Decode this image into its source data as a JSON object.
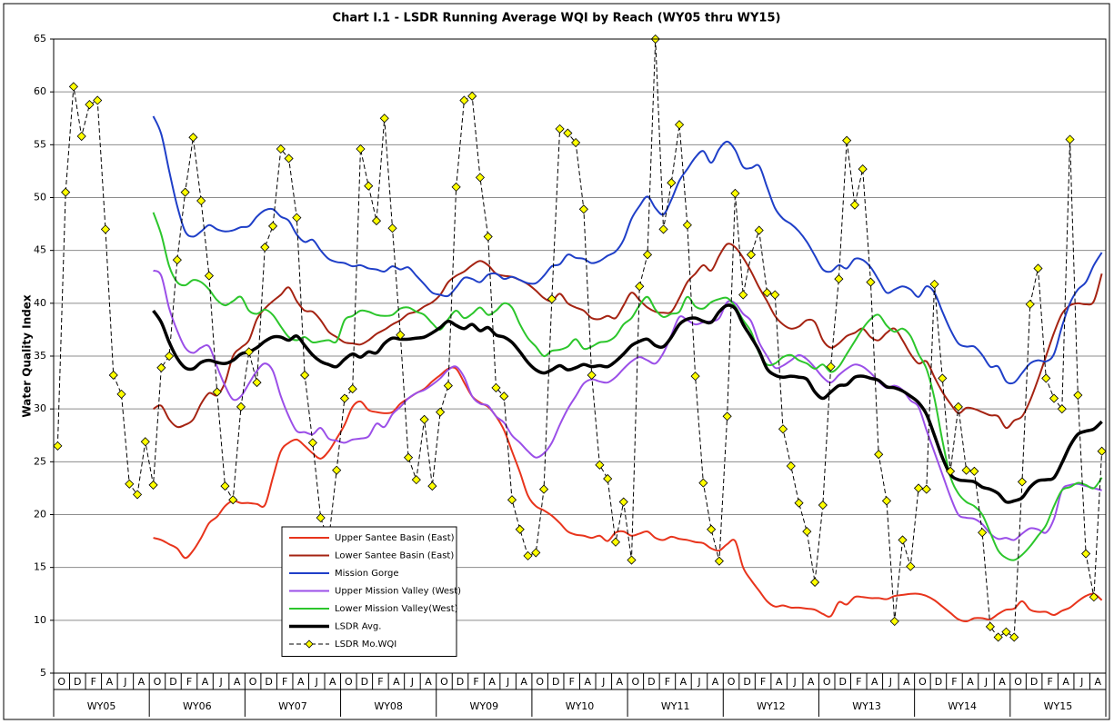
{
  "chart_data": {
    "type": "line",
    "title": "Chart I.1 - LSDR Running Average WQI by Reach (WY05 thru WY15)",
    "y_label": "Water Quality Index",
    "ylim": [
      5,
      65
    ],
    "yticks": [
      5,
      10,
      15,
      20,
      25,
      30,
      35,
      40,
      45,
      50,
      55,
      60,
      65
    ],
    "grid": true,
    "legend": "bottom-center",
    "categories": [
      "O",
      null,
      "D",
      null,
      "F",
      null,
      "A",
      null,
      "J",
      null,
      "A",
      null,
      "O",
      null,
      "D",
      null,
      "F",
      null,
      "A",
      null,
      "J",
      null,
      "A",
      null,
      "O",
      null,
      "D",
      null,
      "F",
      null,
      "A",
      null,
      "J",
      null,
      "A",
      null,
      "O",
      null,
      "D",
      null,
      "F",
      null,
      "A",
      null,
      "J",
      null,
      "A",
      null,
      "O",
      null,
      "D",
      null,
      "F",
      null,
      "A",
      null,
      "J",
      null,
      "A",
      null,
      "O",
      null,
      "D",
      null,
      "F",
      null,
      "A",
      null,
      "J",
      null,
      "A",
      null,
      "O",
      null,
      "D",
      null,
      "F",
      null,
      "A",
      null,
      "J",
      null,
      "A",
      null,
      "O",
      null,
      "D",
      null,
      "F",
      null,
      "A",
      null,
      "J",
      null,
      "A",
      null,
      "O",
      null,
      "D",
      null,
      "F",
      null,
      "A",
      null,
      "J",
      null,
      "A",
      null,
      "O",
      null,
      "D",
      null,
      "F",
      null,
      "A",
      null,
      "J",
      null,
      "A",
      null,
      "O",
      null,
      "D",
      null,
      "F",
      null,
      "A",
      null,
      "J",
      null,
      "A",
      null
    ],
    "x_groups": [
      "WY05",
      "WY06",
      "WY07",
      "WY08",
      "WY09",
      "WY10",
      "WY11",
      "WY12",
      "WY13",
      "WY14",
      "WY15"
    ],
    "series": [
      {
        "name": "Upper Santee Basin (East)",
        "color": "#e8341c",
        "width": 2,
        "values": [
          null,
          null,
          null,
          null,
          null,
          null,
          null,
          null,
          null,
          null,
          null,
          null,
          17.8,
          17.6,
          17.2,
          16.8,
          15.9,
          16.6,
          17.8,
          19.2,
          19.8,
          20.8,
          21.3,
          21.1,
          21.1,
          21.0,
          20.9,
          23.5,
          26.0,
          26.8,
          27.1,
          26.5,
          25.8,
          25.3,
          26.0,
          27.2,
          28.5,
          30.2,
          30.7,
          29.9,
          29.7,
          29.6,
          29.7,
          30.5,
          31.0,
          31.5,
          31.9,
          32.6,
          33.2,
          33.8,
          33.8,
          32.5,
          31.2,
          30.6,
          30.2,
          29.3,
          28.0,
          26.0,
          24.0,
          21.8,
          20.8,
          20.4,
          19.9,
          19.2,
          18.4,
          18.1,
          18.0,
          17.8,
          18.0,
          17.5,
          18.3,
          18.4,
          18.0,
          18.2,
          18.4,
          17.8,
          17.6,
          17.9,
          17.7,
          17.6,
          17.4,
          17.3,
          16.8,
          16.6,
          17.2,
          17.5,
          15.0,
          13.8,
          12.8,
          11.8,
          11.3,
          11.4,
          11.2,
          11.2,
          11.1,
          11.0,
          10.6,
          10.4,
          11.7,
          11.5,
          12.2,
          12.2,
          12.1,
          12.1,
          12.0,
          12.3,
          12.4,
          12.5,
          12.5,
          12.3,
          11.9,
          11.3,
          10.7,
          10.1,
          9.9,
          10.2,
          10.2,
          10.1,
          10.6,
          11.0,
          11.1,
          11.8,
          11.0,
          10.8,
          10.8,
          10.5,
          10.9,
          11.2,
          11.8,
          12.3,
          12.5,
          11.9
        ]
      },
      {
        "name": "Lower Santee Basin (East)",
        "color": "#a52312",
        "width": 2,
        "values": [
          null,
          null,
          null,
          null,
          null,
          null,
          null,
          null,
          null,
          null,
          null,
          null,
          30.0,
          30.3,
          29.0,
          28.3,
          28.5,
          29.0,
          30.5,
          31.5,
          31.3,
          32.5,
          35.0,
          35.8,
          36.5,
          38.5,
          39.5,
          40.2,
          40.8,
          41.5,
          40.2,
          39.3,
          39.2,
          38.4,
          37.3,
          36.8,
          36.3,
          36.2,
          36.1,
          36.5,
          37.1,
          37.5,
          38.0,
          38.4,
          39.0,
          39.2,
          39.7,
          40.1,
          40.8,
          42.0,
          42.6,
          43.0,
          43.6,
          44.0,
          43.6,
          42.8,
          42.6,
          42.5,
          42.2,
          41.8,
          41.2,
          40.5,
          40.2,
          40.9,
          40.0,
          39.6,
          39.3,
          38.6,
          38.5,
          38.8,
          38.6,
          39.8,
          41.0,
          40.3,
          39.6,
          39.2,
          39.1,
          39.2,
          40.5,
          42.0,
          42.8,
          43.6,
          43.1,
          44.5,
          45.6,
          45.3,
          44.3,
          43.0,
          41.5,
          40.2,
          38.8,
          38.0,
          37.6,
          37.8,
          38.4,
          38.2,
          36.5,
          35.8,
          36.2,
          36.9,
          37.2,
          37.6,
          36.8,
          36.5,
          37.2,
          37.6,
          36.5,
          35.2,
          34.3,
          34.5,
          33.0,
          31.6,
          30.5,
          29.6,
          30.1,
          30.0,
          29.7,
          29.4,
          29.3,
          28.2,
          28.9,
          29.3,
          30.8,
          32.8,
          35.0,
          37.2,
          39.0,
          39.8,
          40.0,
          39.9,
          40.2,
          42.8
        ]
      },
      {
        "name": "Mission Gorge",
        "color": "#1f3fc8",
        "width": 2,
        "values": [
          null,
          null,
          null,
          null,
          null,
          null,
          null,
          null,
          null,
          null,
          null,
          null,
          57.7,
          56.0,
          52.5,
          49.2,
          46.8,
          46.3,
          46.8,
          47.4,
          47.0,
          46.8,
          46.9,
          47.2,
          47.3,
          48.2,
          48.8,
          48.9,
          48.2,
          47.8,
          46.5,
          45.8,
          46.0,
          45.0,
          44.2,
          43.9,
          43.8,
          43.5,
          43.6,
          43.3,
          43.2,
          43.0,
          43.5,
          43.2,
          43.4,
          42.6,
          41.8,
          41.0,
          40.8,
          40.7,
          41.5,
          42.4,
          42.3,
          42.0,
          42.7,
          42.8,
          42.3,
          42.5,
          42.2,
          41.9,
          41.9,
          42.6,
          43.5,
          43.7,
          44.6,
          44.3,
          44.2,
          43.8,
          44.0,
          44.5,
          44.9,
          46.0,
          48.0,
          49.2,
          50.1,
          49.0,
          48.4,
          49.8,
          51.6,
          52.7,
          53.8,
          54.4,
          53.3,
          54.6,
          55.3,
          54.5,
          52.9,
          52.8,
          53.0,
          51.0,
          49.0,
          48.0,
          47.5,
          46.8,
          45.8,
          44.5,
          43.2,
          43.0,
          43.6,
          43.3,
          44.2,
          44.1,
          43.4,
          42.2,
          41.0,
          41.3,
          41.6,
          41.3,
          40.6,
          41.6,
          41.0,
          39.2,
          37.5,
          36.2,
          35.9,
          35.9,
          35.1,
          34.0,
          34.0,
          32.6,
          32.5,
          33.4,
          34.3,
          34.6,
          34.5,
          35.2,
          37.8,
          40.0,
          41.3,
          42.0,
          43.6,
          44.8
        ]
      },
      {
        "name": "Upper Mission Valley (West)",
        "color": "#9b4fe8",
        "width": 2,
        "values": [
          null,
          null,
          null,
          null,
          null,
          null,
          null,
          null,
          null,
          null,
          null,
          null,
          43.1,
          42.6,
          39.5,
          37.4,
          35.8,
          35.3,
          35.8,
          35.9,
          34.0,
          32.2,
          30.9,
          31.2,
          32.4,
          33.6,
          34.3,
          33.6,
          31.2,
          29.3,
          27.9,
          27.8,
          27.6,
          28.2,
          27.2,
          27.0,
          26.8,
          27.1,
          27.2,
          27.4,
          28.6,
          28.3,
          29.5,
          30.2,
          31.0,
          31.5,
          31.8,
          32.3,
          32.9,
          33.7,
          34.0,
          33.0,
          31.2,
          30.5,
          30.3,
          29.3,
          28.7,
          27.5,
          26.8,
          26.0,
          25.4,
          25.8,
          26.8,
          28.5,
          30.0,
          31.2,
          32.4,
          32.8,
          32.6,
          32.5,
          33.0,
          33.8,
          34.5,
          34.9,
          34.6,
          34.3,
          35.3,
          37.0,
          38.7,
          38.4,
          38.0,
          38.2,
          38.3,
          38.6,
          40.1,
          40.0,
          39.0,
          38.3,
          36.3,
          35.0,
          33.9,
          34.1,
          34.6,
          35.1,
          34.7,
          33.9,
          33.0,
          32.5,
          33.2,
          33.8,
          34.2,
          34.0,
          33.4,
          32.6,
          32.0,
          32.2,
          31.8,
          30.8,
          30.2,
          28.0,
          25.9,
          23.8,
          21.7,
          20.0,
          19.7,
          19.6,
          19.1,
          18.2,
          17.7,
          17.8,
          17.6,
          18.2,
          18.7,
          18.6,
          18.3,
          19.6,
          22.3,
          22.8,
          22.9,
          22.7,
          22.5,
          22.3
        ]
      },
      {
        "name": "Lower Mission Valley(West)",
        "color": "#2cc62c",
        "width": 2,
        "values": [
          null,
          null,
          null,
          null,
          null,
          null,
          null,
          null,
          null,
          null,
          null,
          null,
          48.6,
          46.5,
          43.5,
          42.0,
          41.7,
          42.2,
          42.0,
          41.3,
          40.3,
          39.8,
          40.2,
          40.6,
          39.3,
          39.0,
          39.4,
          38.9,
          37.8,
          36.8,
          36.5,
          36.8,
          36.3,
          36.4,
          36.5,
          36.4,
          38.4,
          38.8,
          39.3,
          39.2,
          38.9,
          38.8,
          38.9,
          39.5,
          39.6,
          39.2,
          38.9,
          38.1,
          37.5,
          38.5,
          39.3,
          38.6,
          39.0,
          39.6,
          38.9,
          39.3,
          40.0,
          39.6,
          38.0,
          36.7,
          35.9,
          35.0,
          35.5,
          35.6,
          35.9,
          36.6,
          35.7,
          35.9,
          36.3,
          36.4,
          36.9,
          38.0,
          38.6,
          39.8,
          40.6,
          39.4,
          38.7,
          39.0,
          39.2,
          40.6,
          39.7,
          39.5,
          40.1,
          40.4,
          40.5,
          39.7,
          38.4,
          37.3,
          35.3,
          34.2,
          34.3,
          34.9,
          35.1,
          34.6,
          34.3,
          33.8,
          34.2,
          33.5,
          34.0,
          35.2,
          36.4,
          37.6,
          38.5,
          38.9,
          37.9,
          37.3,
          37.6,
          36.9,
          35.2,
          33.8,
          31.0,
          27.0,
          23.6,
          22.0,
          21.2,
          20.8,
          20.0,
          18.3,
          16.6,
          15.9,
          15.7,
          16.2,
          17.0,
          18.0,
          19.0,
          20.8,
          22.3,
          22.6,
          23.0,
          22.8,
          22.5,
          23.5
        ]
      },
      {
        "name": "LSDR Avg.",
        "color": "#000000",
        "width": 3.5,
        "values": [
          null,
          null,
          null,
          null,
          null,
          null,
          null,
          null,
          null,
          null,
          null,
          null,
          39.3,
          38.2,
          36.3,
          34.8,
          33.9,
          33.8,
          34.4,
          34.6,
          34.4,
          34.3,
          34.6,
          35.2,
          35.4,
          35.8,
          36.4,
          36.8,
          36.8,
          36.5,
          36.9,
          36.0,
          35.1,
          34.5,
          34.2,
          34.0,
          34.7,
          35.2,
          34.9,
          35.4,
          35.3,
          36.2,
          36.7,
          36.6,
          36.6,
          36.7,
          36.8,
          37.2,
          37.7,
          38.3,
          37.9,
          37.6,
          38.0,
          37.4,
          37.7,
          37.0,
          36.8,
          36.3,
          35.4,
          34.4,
          33.7,
          33.4,
          33.7,
          34.1,
          33.7,
          33.9,
          34.2,
          34.0,
          34.1,
          34.0,
          34.5,
          35.2,
          36.0,
          36.4,
          36.6,
          36.0,
          35.9,
          36.8,
          38.0,
          38.5,
          38.6,
          38.3,
          38.2,
          39.2,
          39.8,
          39.5,
          38.0,
          36.8,
          35.5,
          33.8,
          33.2,
          33.0,
          33.1,
          33.0,
          32.8,
          31.6,
          31.0,
          31.6,
          32.2,
          32.3,
          33.0,
          33.1,
          32.9,
          32.7,
          32.1,
          32.0,
          31.7,
          31.2,
          30.6,
          29.5,
          27.5,
          25.4,
          23.8,
          23.3,
          23.2,
          23.1,
          22.6,
          22.4,
          22.0,
          21.2,
          21.3,
          21.6,
          22.6,
          23.2,
          23.3,
          23.5,
          24.9,
          26.5,
          27.6,
          27.9,
          28.1,
          28.8
        ]
      },
      {
        "name": "LSDR Mo.WQI",
        "color": "#000000",
        "width": 1,
        "dashed": true,
        "marker": "diamond",
        "marker_color": "#ffff00",
        "values": [
          26.5,
          50.5,
          60.5,
          55.8,
          58.8,
          59.2,
          47.0,
          33.2,
          31.4,
          22.9,
          21.9,
          26.9,
          22.8,
          33.9,
          35.0,
          44.1,
          50.5,
          55.7,
          49.7,
          42.6,
          31.6,
          22.7,
          21.4,
          30.2,
          35.4,
          32.5,
          45.3,
          47.3,
          54.6,
          53.7,
          48.1,
          33.2,
          26.8,
          19.7,
          17.5,
          24.2,
          31.0,
          31.9,
          54.6,
          51.1,
          47.8,
          57.5,
          47.1,
          37.0,
          25.4,
          23.3,
          29.0,
          22.7,
          29.7,
          32.2,
          51.0,
          59.2,
          59.6,
          51.9,
          46.3,
          32.0,
          31.2,
          21.4,
          18.6,
          16.1,
          16.4,
          22.4,
          40.4,
          56.5,
          56.1,
          55.2,
          48.9,
          33.2,
          24.7,
          23.4,
          17.4,
          21.2,
          15.7,
          41.6,
          44.6,
          65,
          47.0,
          51.4,
          56.9,
          47.4,
          33.1,
          23.0,
          18.6,
          15.6,
          29.3,
          50.4,
          40.8,
          44.6,
          46.9,
          41.0,
          40.8,
          28.1,
          24.6,
          21.1,
          18.4,
          13.6,
          20.9,
          34.0,
          42.3,
          55.4,
          49.3,
          52.7,
          42.0,
          25.7,
          21.3,
          9.9,
          17.6,
          15.1,
          22.5,
          22.4,
          41.8,
          32.9,
          24.1,
          30.2,
          24.2,
          24.1,
          18.3,
          9.4,
          8.4,
          8.9,
          8.4,
          23.1,
          39.9,
          43.3,
          32.9,
          31.0,
          30.0,
          55.5,
          31.3,
          16.3,
          12.2,
          26.0
        ]
      }
    ]
  }
}
